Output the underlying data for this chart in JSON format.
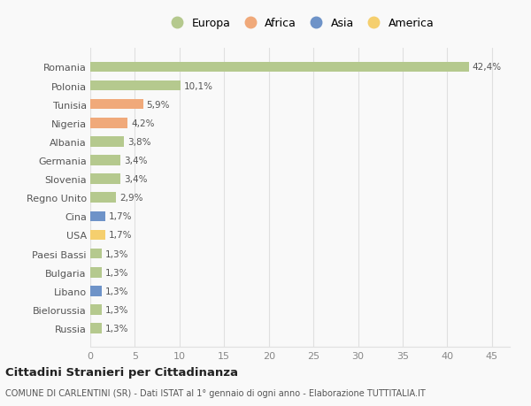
{
  "countries": [
    "Romania",
    "Polonia",
    "Tunisia",
    "Nigeria",
    "Albania",
    "Germania",
    "Slovenia",
    "Regno Unito",
    "Cina",
    "USA",
    "Paesi Bassi",
    "Bulgaria",
    "Libano",
    "Bielorussia",
    "Russia"
  ],
  "values": [
    42.4,
    10.1,
    5.9,
    4.2,
    3.8,
    3.4,
    3.4,
    2.9,
    1.7,
    1.7,
    1.3,
    1.3,
    1.3,
    1.3,
    1.3
  ],
  "labels": [
    "42,4%",
    "10,1%",
    "5,9%",
    "4,2%",
    "3,8%",
    "3,4%",
    "3,4%",
    "2,9%",
    "1,7%",
    "1,7%",
    "1,3%",
    "1,3%",
    "1,3%",
    "1,3%",
    "1,3%"
  ],
  "continents": [
    "Europa",
    "Europa",
    "Africa",
    "Africa",
    "Europa",
    "Europa",
    "Europa",
    "Europa",
    "Asia",
    "America",
    "Europa",
    "Europa",
    "Asia",
    "Europa",
    "Europa"
  ],
  "colors": {
    "Europa": "#b5c98e",
    "Africa": "#f0a97a",
    "Asia": "#6e93c8",
    "America": "#f5cf6e"
  },
  "xlim": [
    0,
    47
  ],
  "xticks": [
    0,
    5,
    10,
    15,
    20,
    25,
    30,
    35,
    40,
    45
  ],
  "legend_order": [
    "Europa",
    "Africa",
    "Asia",
    "America"
  ],
  "title": "Cittadini Stranieri per Cittadinanza",
  "subtitle": "COMUNE DI CARLENTINI (SR) - Dati ISTAT al 1° gennaio di ogni anno - Elaborazione TUTTITALIA.IT",
  "bg_color": "#f9f9f9",
  "grid_color": "#e0e0e0",
  "bar_height": 0.55
}
